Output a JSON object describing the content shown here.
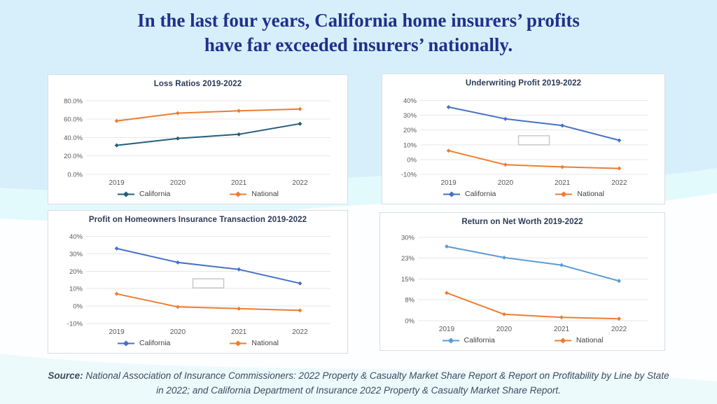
{
  "page": {
    "title_line1": "In the last four years, California home insurers’ profits",
    "title_line2": "have far exceeded insurers’ nationally.",
    "source_label": "Source:",
    "source_text": " National Association of Insurance Commissioners: 2022 Property & Casualty Market Share Report & Report on Profitability by Line by State in 2022; and California Department of Insurance 2022 Property & Casualty Market Share Report."
  },
  "colors": {
    "page_background": "#d6effb",
    "wave_band": "#e3fafd",
    "background_lower": "#fdfeff",
    "title_text": "#20308c",
    "chart_title_text": "#2b3a55",
    "axis_label_text": "#595959",
    "gridline": "#e7e7e7",
    "panel_border": "#d8dde2",
    "source_text_color": "#3e4a5f"
  },
  "chart_data": [
    {
      "type": "line",
      "title": "Loss Ratios 2019-2022",
      "categories": [
        "2019",
        "2020",
        "2021",
        "2022"
      ],
      "series": [
        {
          "name": "California",
          "color": "#255e7e",
          "values": [
            31.5,
            39.0,
            43.5,
            55.0
          ]
        },
        {
          "name": "National",
          "color": "#ed7d31",
          "values": [
            58.0,
            66.5,
            69.0,
            71.0
          ]
        }
      ],
      "y_ticks": [
        {
          "v": 0,
          "label": "0.0%"
        },
        {
          "v": 20,
          "label": "20.0%"
        },
        {
          "v": 40,
          "label": "40.0%"
        },
        {
          "v": 60,
          "label": "60.0%"
        },
        {
          "v": 80,
          "label": "80.0%"
        }
      ],
      "ylim": [
        0,
        86
      ],
      "grid": true,
      "legend_position": "bottom"
    },
    {
      "type": "line",
      "title": "Underwriting Profit 2019-2022",
      "categories": [
        "2019",
        "2020",
        "2021",
        "2022"
      ],
      "series": [
        {
          "name": "California",
          "color": "#4472c4",
          "values": [
            35.5,
            27.5,
            23.0,
            13.0
          ]
        },
        {
          "name": "National",
          "color": "#ed7d31",
          "values": [
            6.0,
            -3.5,
            -5.0,
            -6.0
          ]
        }
      ],
      "y_ticks": [
        {
          "v": -10,
          "label": "-10%"
        },
        {
          "v": 0,
          "label": "0%"
        },
        {
          "v": 10,
          "label": "10%"
        },
        {
          "v": 20,
          "label": "20%"
        },
        {
          "v": 30,
          "label": "30%"
        },
        {
          "v": 40,
          "label": "40%"
        }
      ],
      "ylim": [
        -10,
        44
      ],
      "grid": true,
      "legend_position": "bottom",
      "empty_box": {
        "between": [
          1,
          2
        ],
        "v": 13.0
      }
    },
    {
      "type": "line",
      "title": "Profit on Homeowners Insurance Transaction 2019-2022",
      "categories": [
        "2019",
        "2020",
        "2021",
        "2022"
      ],
      "series": [
        {
          "name": "California",
          "color": "#4472c4",
          "values": [
            33.0,
            25.0,
            21.0,
            13.0
          ]
        },
        {
          "name": "National",
          "color": "#ed7d31",
          "values": [
            7.0,
            -0.5,
            -1.5,
            -2.5
          ]
        }
      ],
      "y_ticks": [
        {
          "v": -10,
          "label": "-10%"
        },
        {
          "v": 0,
          "label": "0%"
        },
        {
          "v": 10,
          "label": "10%"
        },
        {
          "v": 20,
          "label": "20%"
        },
        {
          "v": 30,
          "label": "30%"
        },
        {
          "v": 40,
          "label": "40%"
        }
      ],
      "ylim": [
        -10,
        43
      ],
      "grid": true,
      "legend_position": "bottom",
      "empty_box": {
        "between": [
          1,
          2
        ],
        "v": 13.0
      }
    },
    {
      "type": "line",
      "title": "Return on Net Worth 2019-2022",
      "categories": [
        "2019",
        "2020",
        "2021",
        "2022"
      ],
      "series": [
        {
          "name": "California",
          "color": "#5b9bd5",
          "values": [
            26.7,
            22.7,
            20.0,
            14.3
          ]
        },
        {
          "name": "National",
          "color": "#ed7d31",
          "values": [
            10.0,
            2.3,
            1.2,
            0.7
          ]
        }
      ],
      "y_ticks": [
        {
          "v": 0,
          "label": "0%"
        },
        {
          "v": 7.5,
          "label": "8%"
        },
        {
          "v": 15,
          "label": "15%"
        },
        {
          "v": 22.5,
          "label": "23%"
        },
        {
          "v": 30,
          "label": "30%"
        }
      ],
      "ylim": [
        0,
        31.5
      ],
      "grid": true,
      "legend_position": "bottom"
    }
  ]
}
